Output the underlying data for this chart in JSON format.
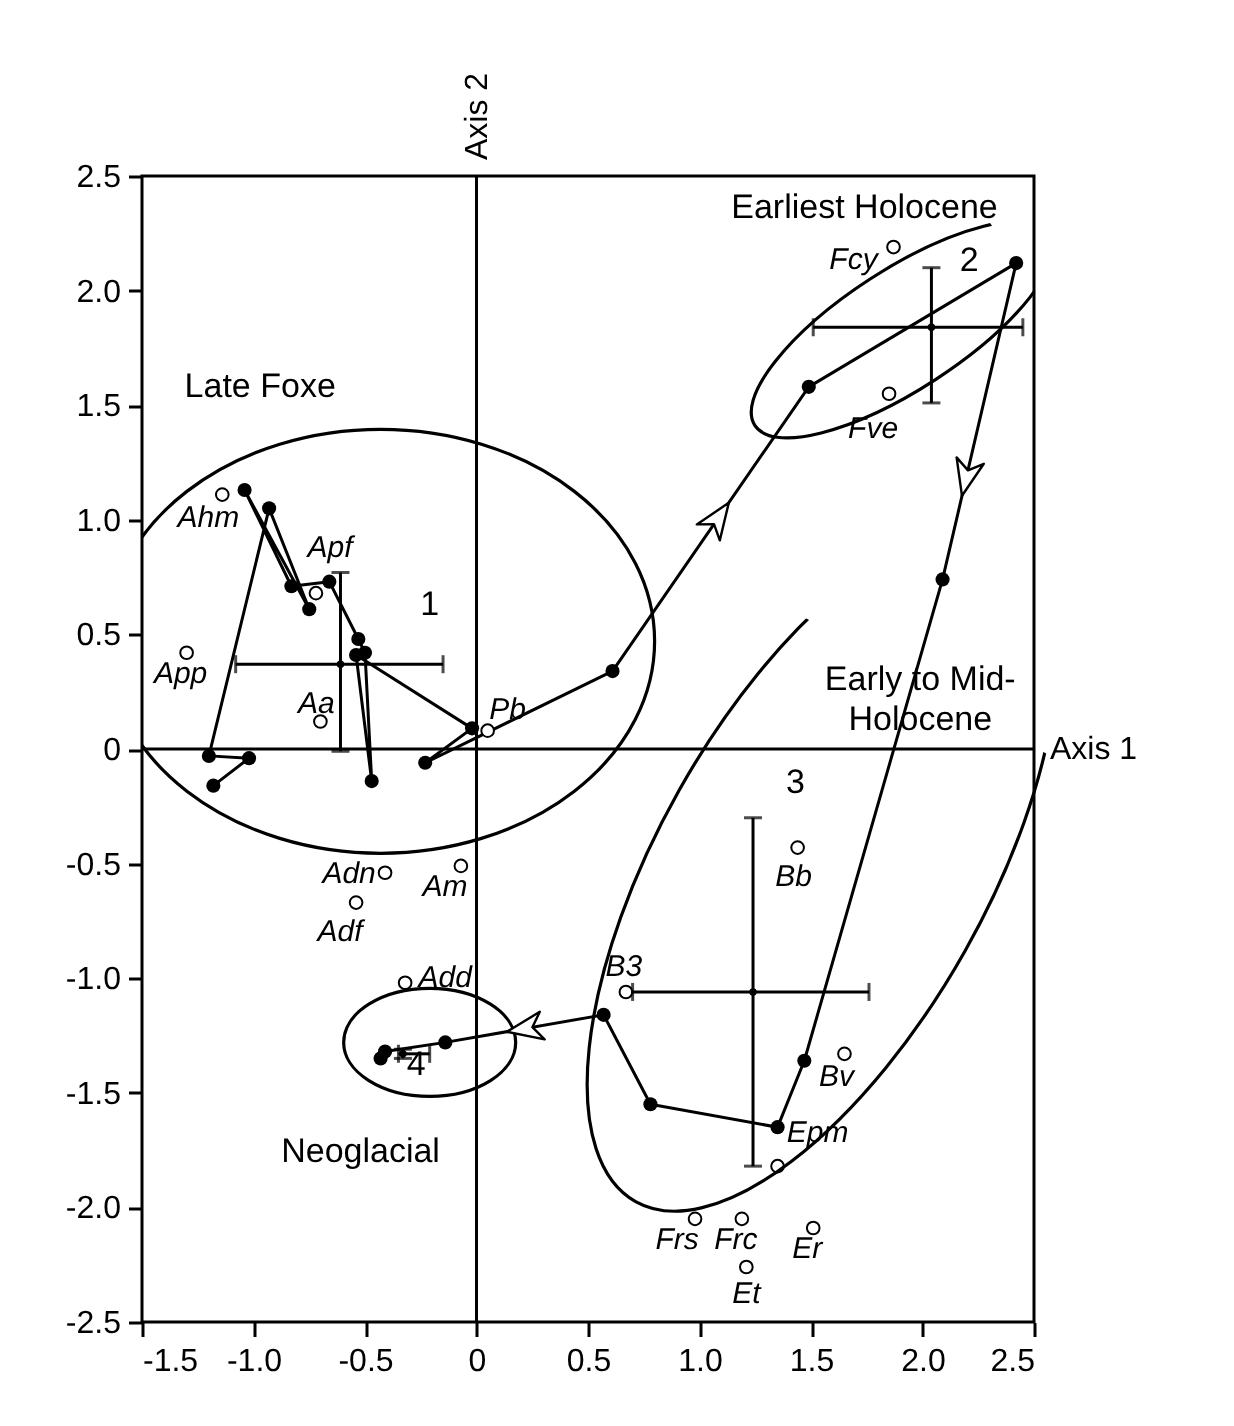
{
  "chart_data": {
    "type": "line",
    "xlim": [
      -1.5,
      2.5
    ],
    "xticks": [
      -1.5,
      {
        "value": -1,
        "label": "-1.0"
      },
      -0.5,
      0,
      0.5,
      {
        "value": 1,
        "label": "1.0"
      },
      1.5,
      {
        "value": 2,
        "label": "2.0"
      },
      2.5
    ],
    "ylim": [
      -2.5,
      2.5
    ],
    "yticks": [
      -2.5,
      {
        "value": -2,
        "label": "-2.0"
      },
      -1.5,
      {
        "value": -1,
        "label": "-1.0"
      },
      -0.5,
      0,
      0.5,
      {
        "value": 1,
        "label": "1.0"
      },
      1.5,
      {
        "value": 2,
        "label": "2.0"
      },
      2.5
    ],
    "grid": false,
    "ref_lines": [
      {
        "axis": "x",
        "value": 0,
        "label": "Axis 2"
      },
      {
        "axis": "y",
        "value": 0,
        "label": "Axis 1"
      }
    ],
    "series": [
      {
        "color": "#000000",
        "marker": "circle",
        "x": [
          -1.18,
          -1.02,
          -1.2,
          -0.93,
          -0.75,
          -1.04,
          -0.83,
          -0.66,
          -0.53,
          -0.5,
          -0.47,
          -0.54,
          -0.02,
          -0.23,
          0.61,
          1.49,
          2.42,
          2.09,
          1.47,
          1.35,
          0.78,
          0.57,
          -0.14,
          -0.41,
          -0.43
        ],
        "values": [
          -0.16,
          -0.04,
          -0.03,
          1.05,
          0.61,
          1.13,
          0.71,
          0.73,
          0.48,
          0.42,
          -0.14,
          0.41,
          0.09,
          -0.06,
          0.34,
          1.58,
          2.12,
          0.74,
          -1.36,
          -1.65,
          -1.55,
          -1.16,
          -1.28,
          -1.32,
          -1.35
        ]
      },
      {
        "type": "scatter",
        "color": "#000000",
        "marker": "circle",
        "x": [
          1.87,
          1.85,
          -1.14,
          -0.72,
          -1.3,
          -0.7,
          0.05,
          -0.41,
          -0.07,
          -0.54,
          -0.32,
          0.67,
          1.44,
          1.65,
          1.35,
          0.98,
          1.19,
          1.51,
          1.21
        ],
        "values": [
          2.19,
          1.55,
          1.11,
          0.68,
          0.42,
          0.12,
          0.08,
          -0.54,
          -0.51,
          -0.67,
          -1.02,
          -1.06,
          -0.43,
          -1.33,
          -1.82,
          -2.05,
          -2.05,
          -2.09,
          -2.26
        ]
      },
      {
        "type": "scatter",
        "color": "#000000",
        "marker": "none",
        "x": [
          -0.61,
          2.04,
          1.24,
          -0.33
        ],
        "values": [
          0.37,
          1.84,
          -1.06,
          -1.33
        ],
        "errors": [
          [
            -0.01,
            0.77
          ],
          [
            1.51,
            2.1
          ],
          [
            -1.82,
            -0.3
          ],
          [
            -1.35,
            -1.31
          ]
        ],
        "xerrors": [
          [
            -1.08,
            -0.15
          ],
          [
            1.51,
            2.45
          ],
          [
            0.7,
            1.76
          ],
          [
            -0.35,
            -0.21
          ]
        ]
      }
    ],
    "annotations": [
      "Late Foxe",
      "Earliest Holocene",
      "Early to Mid-\nHolocene",
      "Neoglacial",
      "1",
      "2",
      "3",
      "4",
      {
        "text": "Fcy",
        "x": 1.87,
        "y": 2.19
      },
      {
        "text": "Fve",
        "x": 1.85,
        "y": 1.55
      },
      {
        "text": "Ahm",
        "x": -1.14,
        "y": 1.11
      },
      {
        "text": "Apf",
        "x": -0.72,
        "y": 0.68
      },
      {
        "text": "App",
        "x": -1.3,
        "y": 0.42
      },
      {
        "text": "Aa",
        "x": -0.7,
        "y": 0.12
      },
      {
        "text": "Pb",
        "x": 0.05,
        "y": 0.08
      },
      {
        "text": "Adn",
        "x": -0.41,
        "y": -0.54
      },
      {
        "text": "Am",
        "x": -0.07,
        "y": -0.51
      },
      {
        "text": "Adf",
        "x": -0.54,
        "y": -0.67
      },
      {
        "text": "Add",
        "x": -0.32,
        "y": -1.02
      },
      {
        "text": "B3",
        "x": 0.67,
        "y": -1.06
      },
      {
        "text": "Bb",
        "x": 1.44,
        "y": -0.43
      },
      {
        "text": "Bv",
        "x": 1.65,
        "y": -1.33
      },
      {
        "text": "Epm",
        "x": 1.35,
        "y": -1.82
      },
      {
        "text": "Frs",
        "x": 0.98,
        "y": -2.05
      },
      {
        "text": "Frc",
        "x": 1.19,
        "y": -2.05
      },
      {
        "text": "Er",
        "x": 1.51,
        "y": -2.09
      },
      {
        "text": "Et",
        "x": 1.21,
        "y": -2.26
      }
    ]
  }
}
